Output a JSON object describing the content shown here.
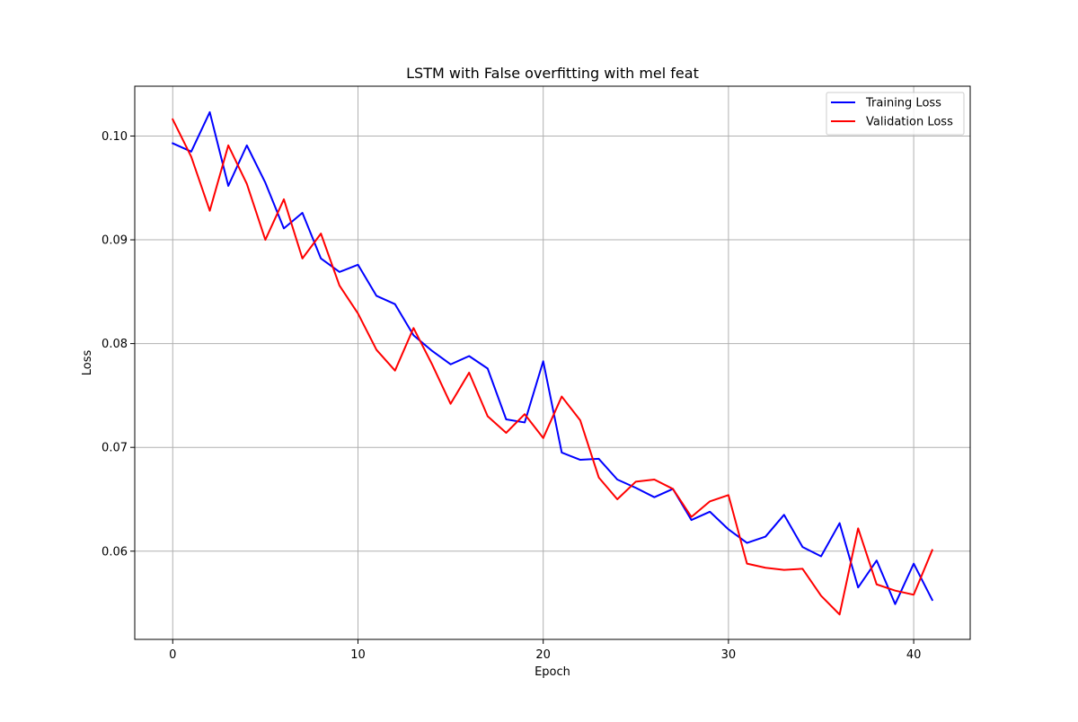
{
  "chart_data": {
    "type": "line",
    "title": "LSTM with False overfitting with mel feat",
    "xlabel": "Epoch",
    "ylabel": "Loss",
    "xlim": [
      -2.05,
      43.05
    ],
    "ylim": [
      0.0515,
      0.1048
    ],
    "xticks": [
      0,
      10,
      20,
      30,
      40
    ],
    "xtick_labels": [
      "0",
      "10",
      "20",
      "30",
      "40"
    ],
    "yticks": [
      0.06,
      0.07,
      0.08,
      0.09,
      0.1
    ],
    "ytick_labels": [
      "0.06",
      "0.07",
      "0.08",
      "0.09",
      "0.10"
    ],
    "grid": true,
    "legend_position": "upper-right",
    "x": [
      0,
      1,
      2,
      3,
      4,
      5,
      6,
      7,
      8,
      9,
      10,
      11,
      12,
      13,
      14,
      15,
      16,
      17,
      18,
      19,
      20,
      21,
      22,
      23,
      24,
      25,
      26,
      27,
      28,
      29,
      30,
      31,
      32,
      33,
      34,
      35,
      36,
      37,
      38,
      39,
      40,
      41
    ],
    "series": [
      {
        "name": "Training Loss",
        "color": "#0000ff",
        "values": [
          0.0993,
          0.0985,
          0.1023,
          0.0952,
          0.0991,
          0.0955,
          0.0911,
          0.0926,
          0.0882,
          0.0869,
          0.0876,
          0.0846,
          0.0838,
          0.0808,
          0.0793,
          0.078,
          0.0788,
          0.0776,
          0.0727,
          0.0724,
          0.0783,
          0.0695,
          0.0688,
          0.0689,
          0.0669,
          0.0661,
          0.0652,
          0.066,
          0.063,
          0.0638,
          0.0621,
          0.0608,
          0.0614,
          0.0635,
          0.0604,
          0.0595,
          0.0627,
          0.0565,
          0.0591,
          0.0549,
          0.0588,
          0.0553
        ]
      },
      {
        "name": "Validation Loss",
        "color": "#ff0000",
        "values": [
          0.1016,
          0.098,
          0.0928,
          0.0991,
          0.0954,
          0.09,
          0.0939,
          0.0882,
          0.0906,
          0.0856,
          0.0829,
          0.0794,
          0.0774,
          0.0815,
          0.078,
          0.0742,
          0.0772,
          0.073,
          0.0714,
          0.0732,
          0.0709,
          0.0749,
          0.0726,
          0.0671,
          0.065,
          0.0667,
          0.0669,
          0.066,
          0.0633,
          0.0648,
          0.0654,
          0.0588,
          0.0584,
          0.0582,
          0.0583,
          0.0557,
          0.0539,
          0.0622,
          0.0568,
          0.0562,
          0.0558,
          0.0601
        ]
      }
    ]
  }
}
